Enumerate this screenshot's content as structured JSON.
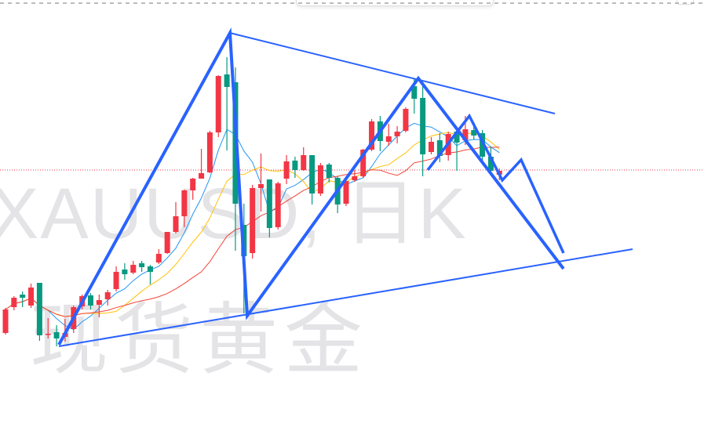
{
  "watermark": {
    "symbol": "XAUUSD, 日K",
    "name": "现货黄金"
  },
  "colors": {
    "up": "#f23645",
    "down": "#089981",
    "ma5": "#2196f3",
    "ma10": "#ffc107",
    "ma20": "#f44336",
    "drawing": "#2962ff",
    "price_line": "#f23645"
  },
  "chart_data": {
    "type": "candlestick",
    "title": "",
    "xlabel": "",
    "ylabel": "",
    "grid": false,
    "moving_averages": [
      5,
      10,
      20
    ],
    "ohlc": [
      [
        120,
        152,
        118,
        150
      ],
      [
        153,
        167,
        149,
        165
      ],
      [
        169,
        173,
        153,
        165
      ],
      [
        155,
        183,
        152,
        178
      ],
      [
        184,
        184,
        110,
        117
      ],
      [
        118,
        139,
        113,
        119
      ],
      [
        121,
        130,
        103,
        113
      ],
      [
        115,
        138,
        109,
        120
      ],
      [
        125,
        155,
        120,
        153
      ],
      [
        154,
        169,
        150,
        167
      ],
      [
        168,
        171,
        150,
        155
      ],
      [
        156,
        169,
        140,
        162
      ],
      [
        163,
        175,
        155,
        172
      ],
      [
        176,
        205,
        173,
        198
      ],
      [
        201,
        209,
        188,
        195
      ],
      [
        197,
        212,
        195,
        207
      ],
      [
        209,
        212,
        198,
        204
      ],
      [
        205,
        207,
        182,
        198
      ],
      [
        210,
        227,
        208,
        221
      ],
      [
        222,
        249,
        221,
        249
      ],
      [
        249,
        287,
        247,
        269
      ],
      [
        269,
        303,
        255,
        302
      ],
      [
        302,
        318,
        290,
        317
      ],
      [
        317,
        355,
        317,
        324
      ],
      [
        325,
        378,
        324,
        376
      ],
      [
        376,
        449,
        370,
        448
      ],
      [
        450,
        472,
        353,
        434
      ],
      [
        440,
        459,
        225,
        285
      ],
      [
        258,
        285,
        145,
        218
      ],
      [
        222,
        309,
        215,
        305
      ],
      [
        305,
        349,
        275,
        310
      ],
      [
        316,
        316,
        242,
        254
      ],
      [
        255,
        313,
        252,
        311
      ],
      [
        317,
        347,
        310,
        339
      ],
      [
        340,
        345,
        318,
        328
      ],
      [
        328,
        357,
        327,
        347
      ],
      [
        347,
        347,
        284,
        298
      ],
      [
        298,
        337,
        295,
        334
      ],
      [
        335,
        337,
        312,
        318
      ],
      [
        318,
        320,
        273,
        284
      ],
      [
        285,
        317,
        282,
        314
      ],
      [
        315,
        328,
        313,
        320
      ],
      [
        320,
        355,
        318,
        354
      ],
      [
        354,
        393,
        352,
        390
      ],
      [
        390,
        397,
        352,
        365
      ],
      [
        364,
        387,
        359,
        371
      ],
      [
        371,
        384,
        362,
        377
      ],
      [
        378,
        408,
        376,
        406
      ],
      [
        435,
        445,
        400,
        419
      ],
      [
        420,
        437,
        320,
        348
      ],
      [
        351,
        370,
        348,
        364
      ],
      [
        366,
        375,
        338,
        346
      ],
      [
        347,
        377,
        340,
        374
      ],
      [
        377,
        380,
        327,
        363
      ],
      [
        366,
        397,
        360,
        380
      ],
      [
        379,
        389,
        367,
        372
      ],
      [
        375,
        379,
        338,
        345
      ],
      [
        345,
        358,
        325,
        327
      ],
      [
        322,
        330,
        315,
        327
      ]
    ],
    "current_price": 328
  }
}
